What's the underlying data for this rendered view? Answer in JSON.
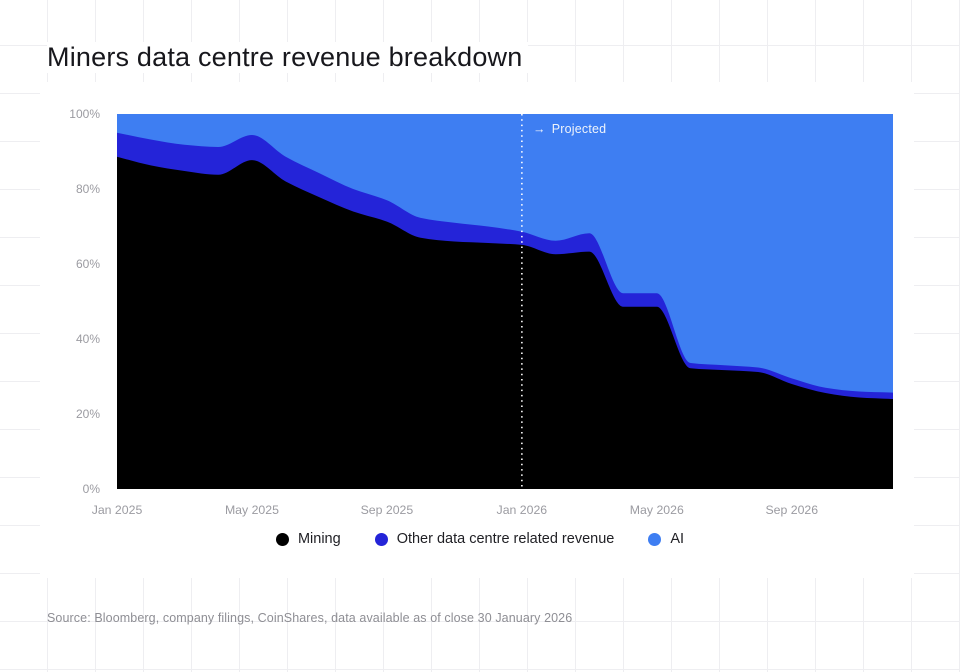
{
  "page": {
    "title": "Miners data centre revenue breakdown",
    "source": "Source: Bloomberg, company filings, CoinShares, data available as of close 30 January 2026"
  },
  "colors": {
    "mining": "#000000",
    "other": "#2424d8",
    "ai": "#3e7ef2",
    "divider": "#ffffff",
    "axis_text": "#9b9ba1"
  },
  "annotation": {
    "arrow": "→",
    "text": "Projected"
  },
  "legend": [
    {
      "label": "Mining",
      "color": "#000000"
    },
    {
      "label": "Other data centre related revenue",
      "color": "#2424d8"
    },
    {
      "label": "AI",
      "color": "#3e7ef2"
    }
  ],
  "chart_data": {
    "type": "area",
    "stacked": true,
    "unit": "%",
    "ylim": [
      0,
      100
    ],
    "grid": false,
    "legend_position": "bottom",
    "x": [
      "Jan 2025",
      "Feb 2025",
      "Mar 2025",
      "Apr 2025",
      "May 2025",
      "Jun 2025",
      "Jul 2025",
      "Aug 2025",
      "Sep 2025",
      "Oct 2025",
      "Nov 2025",
      "Dec 2025",
      "Jan 2026",
      "Feb 2026",
      "Mar 2026",
      "Apr 2026",
      "May 2026",
      "Jun 2026",
      "Jul 2026",
      "Aug 2026",
      "Sep 2026",
      "Oct 2026",
      "Nov 2026",
      "Dec 2026"
    ],
    "x_ticks": [
      {
        "index": 0,
        "label": "Jan 2025"
      },
      {
        "index": 4,
        "label": "May 2025"
      },
      {
        "index": 8,
        "label": "Sep 2025"
      },
      {
        "index": 12,
        "label": "Jan 2026"
      },
      {
        "index": 16,
        "label": "May 2026"
      },
      {
        "index": 20,
        "label": "Sep 2026"
      }
    ],
    "y_ticks": [
      {
        "value": 100,
        "label": "100%"
      },
      {
        "value": 80,
        "label": "80%"
      },
      {
        "value": 60,
        "label": "60%"
      },
      {
        "value": 40,
        "label": "40%"
      },
      {
        "value": 20,
        "label": "20%"
      },
      {
        "value": 0,
        "label": "0%"
      }
    ],
    "series": [
      {
        "name": "Mining",
        "color": "#000000",
        "values": [
          88.6,
          86.3,
          84.8,
          83.8,
          87.7,
          82.0,
          77.8,
          74.0,
          71.3,
          67.0,
          66.0,
          65.6,
          65.1,
          62.6,
          63.3,
          48.6,
          48.6,
          32.2,
          31.7,
          31.2,
          28.0,
          25.6,
          24.4,
          24.0
        ]
      },
      {
        "name": "Other data centre related revenue",
        "color": "#2424d8",
        "values": [
          6.4,
          6.9,
          7.0,
          7.4,
          6.7,
          6.6,
          6.4,
          6.0,
          5.7,
          5.3,
          5.0,
          4.4,
          3.5,
          3.6,
          4.9,
          3.6,
          3.6,
          1.4,
          1.3,
          1.2,
          1.5,
          1.4,
          1.6,
          1.7
        ]
      },
      {
        "name": "AI",
        "color": "#3e7ef2",
        "values": [
          5.0,
          6.8,
          8.2,
          8.8,
          5.6,
          11.4,
          15.8,
          20.0,
          23.0,
          27.7,
          29.0,
          30.0,
          31.4,
          33.8,
          31.8,
          47.8,
          47.8,
          66.4,
          67.0,
          67.6,
          70.5,
          73.0,
          74.0,
          74.3
        ]
      }
    ],
    "projected_start_label": "Jan 2026",
    "projected_start_index": 12
  }
}
